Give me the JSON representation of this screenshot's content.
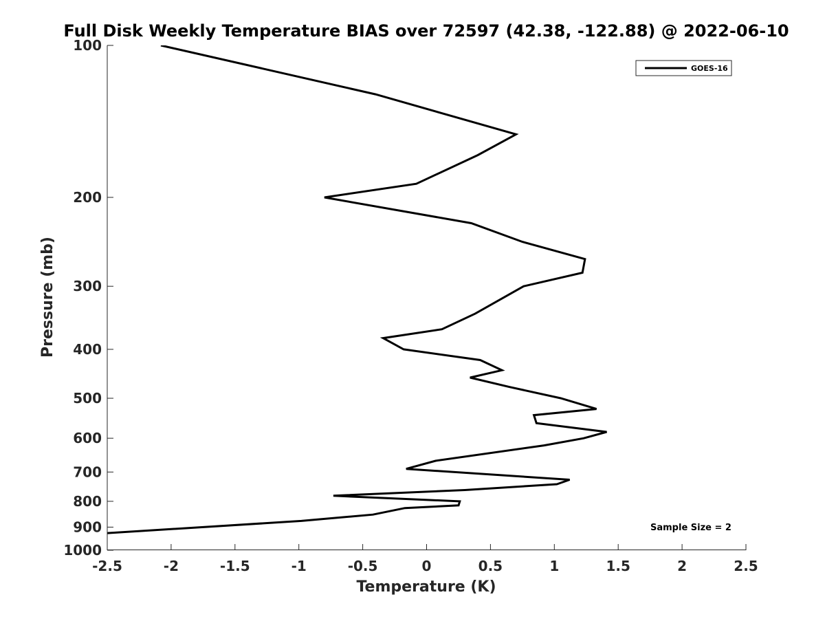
{
  "chart_data": {
    "type": "line",
    "title": "Full Disk Weekly Temperature BIAS over 72597 (42.38, -122.88) @ 2022-06-10",
    "xlabel": "Temperature (K)",
    "ylabel": "Pressure (mb)",
    "xlim": [
      -2.5,
      2.5
    ],
    "ylim": [
      100,
      1000
    ],
    "y_scale": "log",
    "y_reversed": true,
    "grid": false,
    "legend_position": "top-right",
    "x_ticks": [
      -2.5,
      -2,
      -1.5,
      -1,
      -0.5,
      0,
      0.5,
      1,
      1.5,
      2,
      2.5
    ],
    "x_tick_labels": [
      "-2.5",
      "-2",
      "-1.5",
      "-1",
      "-0.5",
      "0",
      "0.5",
      "1",
      "1.5",
      "2",
      "2.5"
    ],
    "y_ticks": [
      100,
      200,
      300,
      400,
      500,
      600,
      700,
      800,
      900,
      1000
    ],
    "y_tick_labels": [
      "100",
      "200",
      "300",
      "400",
      "500",
      "600",
      "700",
      "800",
      "900",
      "1000"
    ],
    "series": [
      {
        "name": "GOES-16",
        "color": "#000000",
        "points": [
          {
            "x": -2.08,
            "y": 100
          },
          {
            "x": -0.4,
            "y": 125
          },
          {
            "x": 0.7,
            "y": 150
          },
          {
            "x": 0.4,
            "y": 165
          },
          {
            "x": -0.08,
            "y": 188
          },
          {
            "x": -0.8,
            "y": 200
          },
          {
            "x": 0.35,
            "y": 225
          },
          {
            "x": 0.75,
            "y": 245
          },
          {
            "x": 1.24,
            "y": 265
          },
          {
            "x": 1.22,
            "y": 282
          },
          {
            "x": 0.76,
            "y": 300
          },
          {
            "x": 0.38,
            "y": 340
          },
          {
            "x": 0.12,
            "y": 365
          },
          {
            "x": -0.34,
            "y": 380
          },
          {
            "x": -0.18,
            "y": 400
          },
          {
            "x": 0.42,
            "y": 420
          },
          {
            "x": 0.59,
            "y": 440
          },
          {
            "x": 0.34,
            "y": 455
          },
          {
            "x": 0.65,
            "y": 475
          },
          {
            "x": 1.05,
            "y": 500
          },
          {
            "x": 1.33,
            "y": 525
          },
          {
            "x": 0.84,
            "y": 540
          },
          {
            "x": 0.86,
            "y": 560
          },
          {
            "x": 1.41,
            "y": 583
          },
          {
            "x": 1.23,
            "y": 600
          },
          {
            "x": 0.92,
            "y": 620
          },
          {
            "x": 0.07,
            "y": 665
          },
          {
            "x": -0.16,
            "y": 690
          },
          {
            "x": 1.12,
            "y": 725
          },
          {
            "x": 1.02,
            "y": 740
          },
          {
            "x": 0.3,
            "y": 760
          },
          {
            "x": -0.73,
            "y": 780
          },
          {
            "x": 0.26,
            "y": 800
          },
          {
            "x": 0.25,
            "y": 815
          },
          {
            "x": -0.17,
            "y": 825
          },
          {
            "x": -0.42,
            "y": 850
          },
          {
            "x": -0.98,
            "y": 875
          },
          {
            "x": -2.5,
            "y": 925
          }
        ]
      }
    ],
    "annotation": "Sample Size = 2"
  }
}
